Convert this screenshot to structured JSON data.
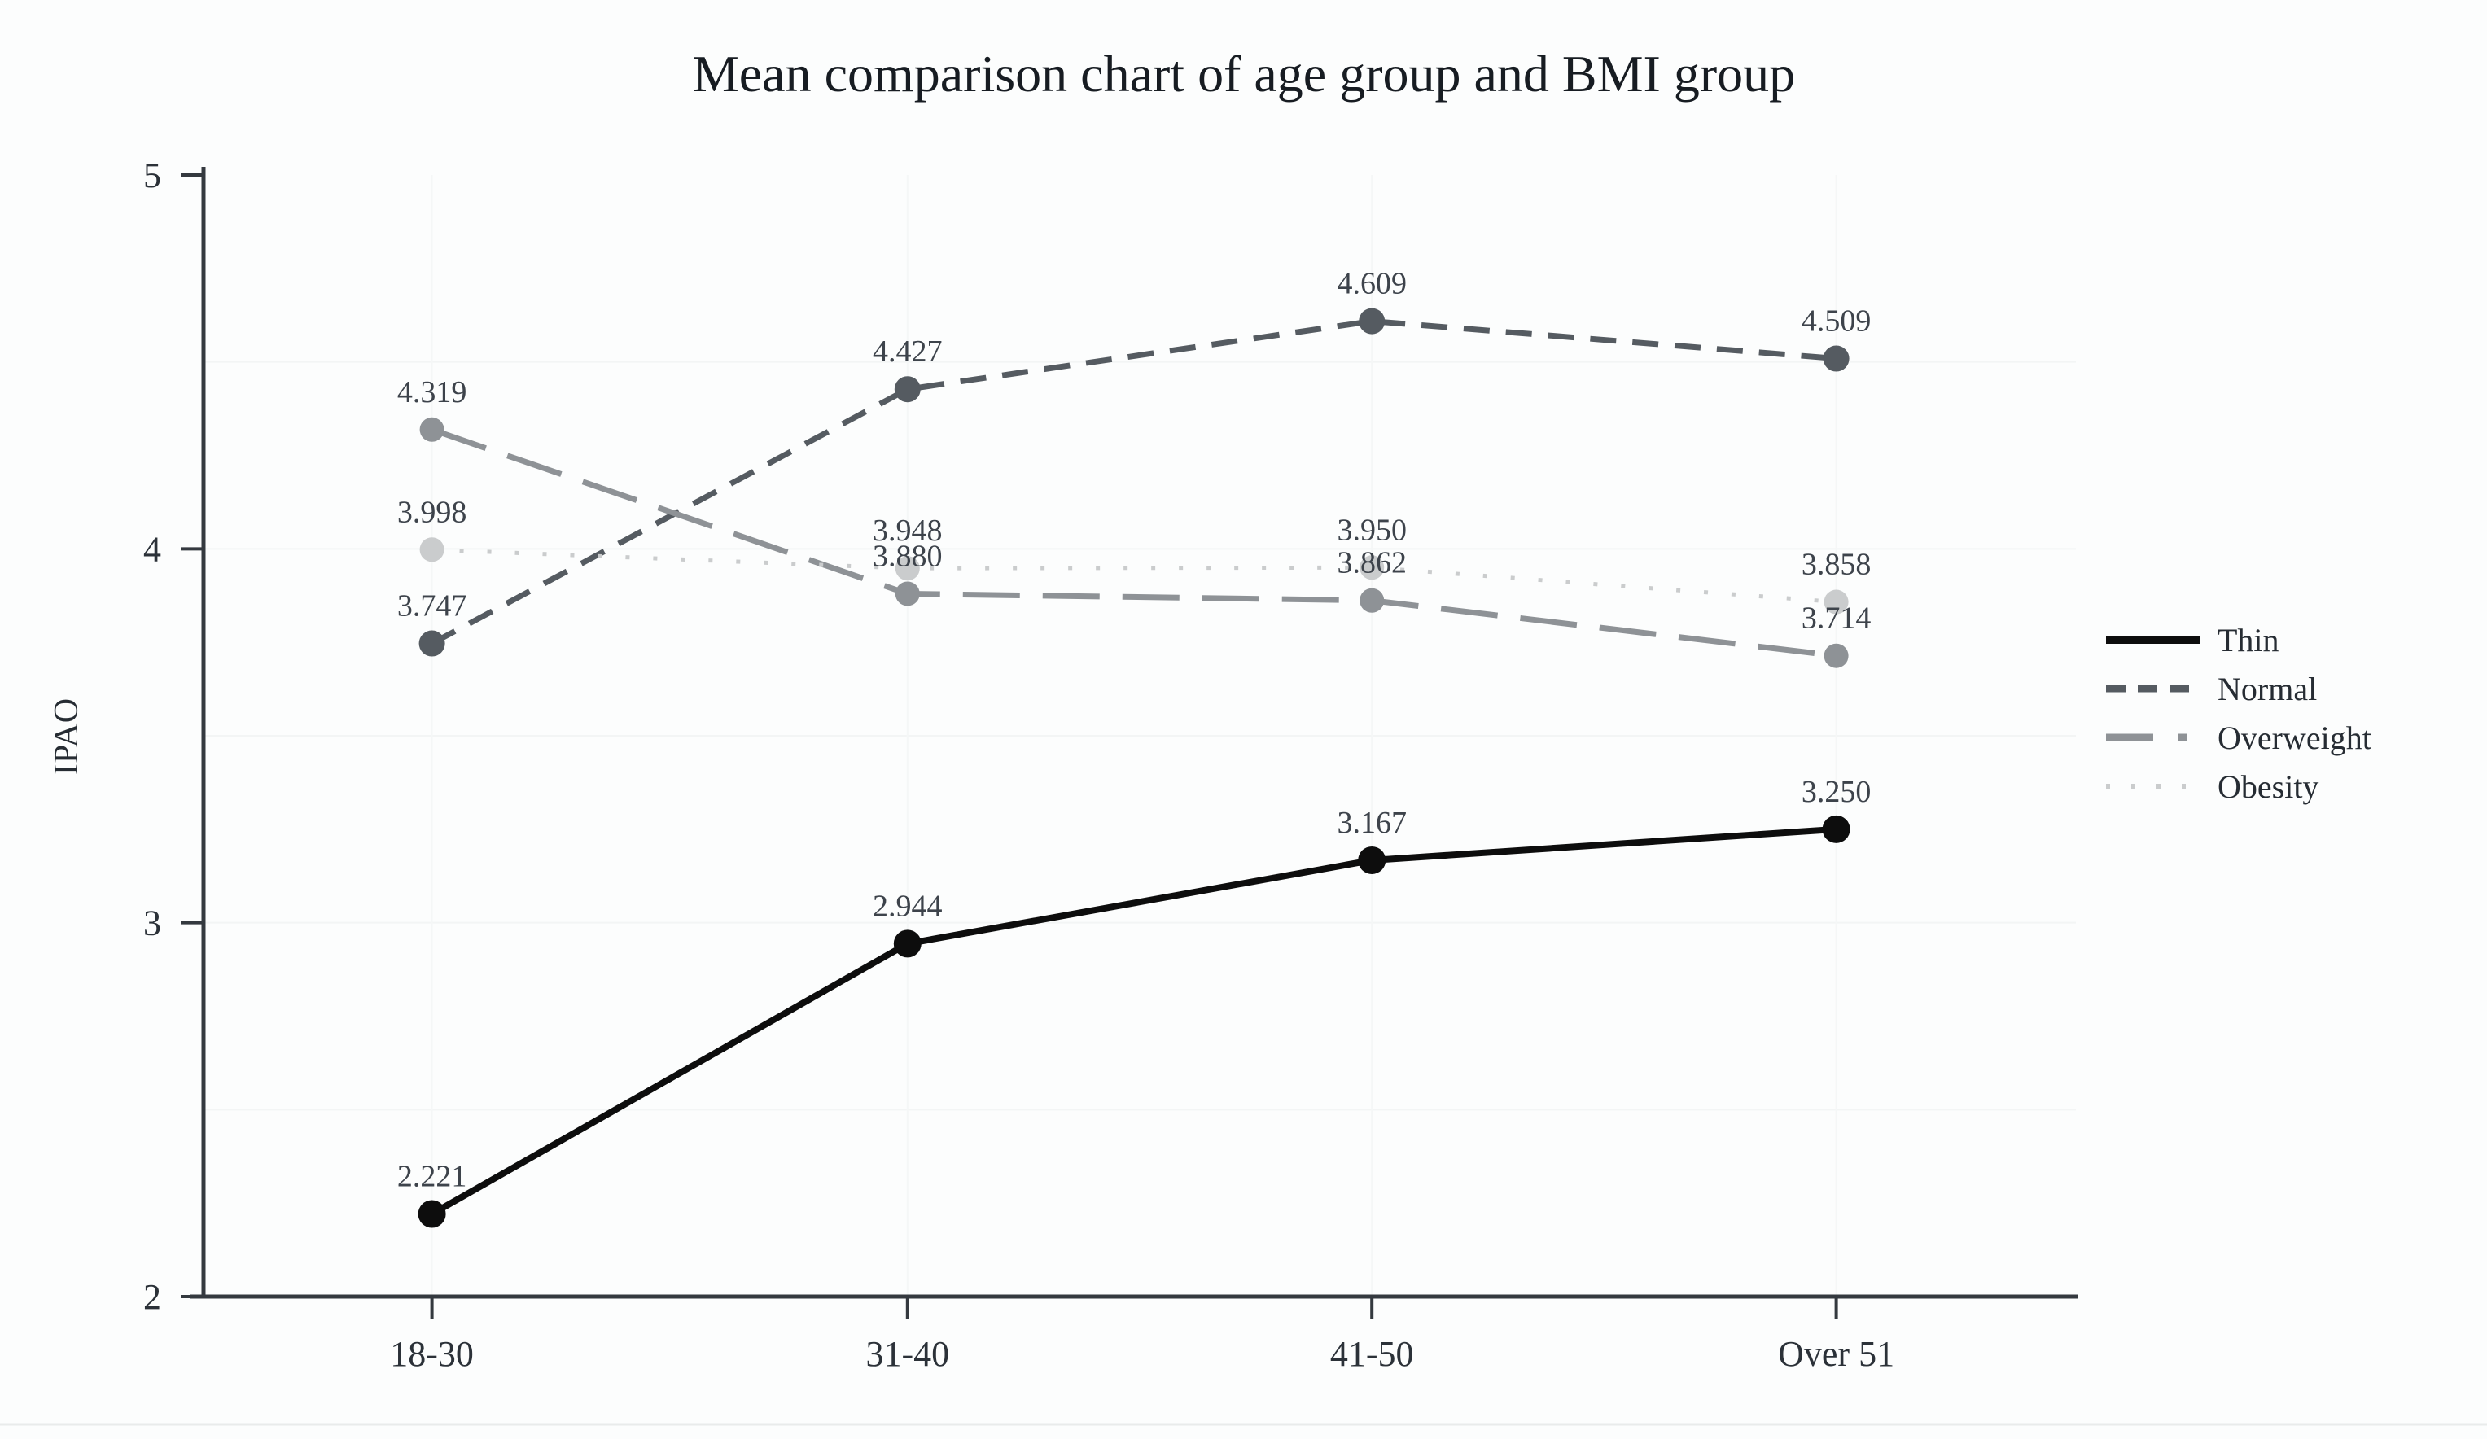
{
  "figure": {
    "background": "#fcfdfd",
    "border_bottom_color": "#e9ebeb"
  },
  "chart_data": {
    "type": "line",
    "title": "Mean comparison chart of age group and BMI group",
    "xlabel": "",
    "ylabel": "IPAO",
    "categories": [
      "18-30",
      "31-40",
      "41-50",
      "Over 51"
    ],
    "y_ticks": [
      "2",
      "3",
      "4",
      "5"
    ],
    "ylim": [
      2,
      5
    ],
    "grid": false,
    "legend_position": "right",
    "axis_color": "#34393f",
    "series": [
      {
        "name": "Thin",
        "values": [
          2.221,
          2.944,
          3.167,
          3.25
        ],
        "labels": [
          "2.221",
          "2.944",
          "3.167",
          "3.250"
        ],
        "color": "#0d0d0d",
        "style": "solid"
      },
      {
        "name": "Normal",
        "values": [
          3.747,
          4.427,
          4.609,
          4.509
        ],
        "labels": [
          "3.747",
          "4.427",
          "4.609",
          "4.509"
        ],
        "color": "#555b61",
        "style": "dashed"
      },
      {
        "name": "Overweight",
        "values": [
          4.319,
          3.88,
          3.862,
          3.714
        ],
        "labels": [
          "4.319",
          "3.880",
          "3.862",
          "3.714"
        ],
        "color": "#8e9296",
        "style": "long-dash"
      },
      {
        "name": "Obesity",
        "values": [
          3.998,
          3.948,
          3.95,
          3.858
        ],
        "labels": [
          "3.998",
          "3.948",
          "3.950",
          "3.858"
        ],
        "color": "#cacccd",
        "style": "dotted"
      }
    ]
  }
}
